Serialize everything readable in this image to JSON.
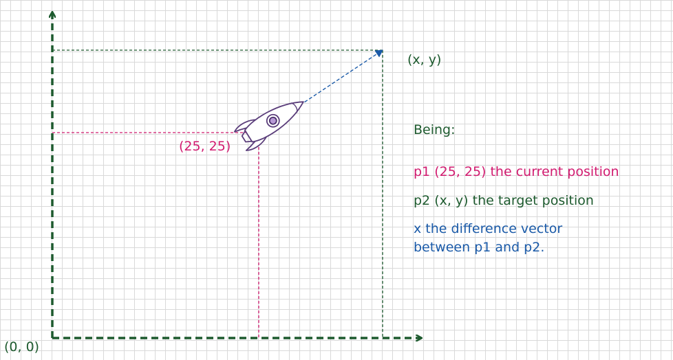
{
  "labels": {
    "origin": "(0, 0)",
    "current_point": "(25, 25)",
    "target_point": "(x, y)"
  },
  "legend": {
    "heading": "Being:",
    "p1": "p1 (25, 25) the current position",
    "p2": "p2 (x, y) the target position",
    "vector_line1": "x the difference vector",
    "vector_line2": "between p1 and p2."
  },
  "colors": {
    "axes": "#1d5a2e",
    "current": "#d11a6f",
    "target": "#1d5a2e",
    "vector": "#1a5aa8",
    "rocket": "#5a3d7a"
  },
  "icons": {
    "rocket": "rocket-icon"
  }
}
